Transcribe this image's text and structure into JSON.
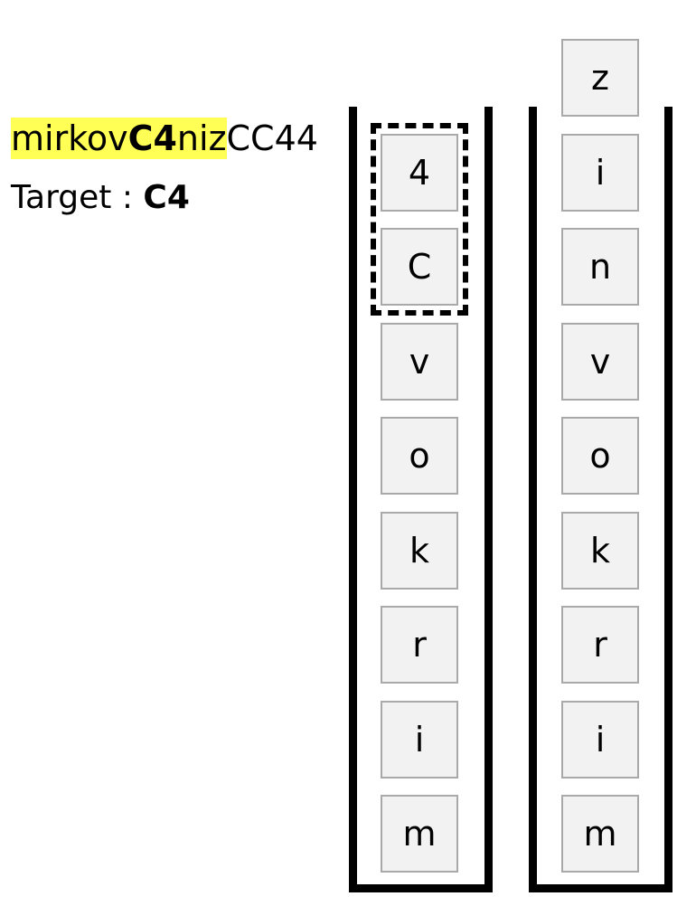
{
  "sequence": {
    "segments": [
      {
        "text": "mirkov",
        "highlight": true,
        "bold": false
      },
      {
        "text": "C4",
        "highlight": true,
        "bold": true
      },
      {
        "text": "niz",
        "highlight": true,
        "bold": false
      },
      {
        "text": "CC44",
        "highlight": false,
        "bold": false
      }
    ]
  },
  "target": {
    "label": "Target :",
    "value": "C4"
  },
  "stacks": [
    {
      "name": "left",
      "cells_top_to_bottom": [
        "4",
        "C",
        "v",
        "o",
        "k",
        "r",
        "i",
        "m"
      ],
      "selected_top_count": 2
    },
    {
      "name": "right",
      "cells_top_to_bottom": [
        "z",
        "i",
        "n",
        "v",
        "o",
        "k",
        "r",
        "i",
        "m"
      ],
      "selected_top_count": 0
    }
  ]
}
